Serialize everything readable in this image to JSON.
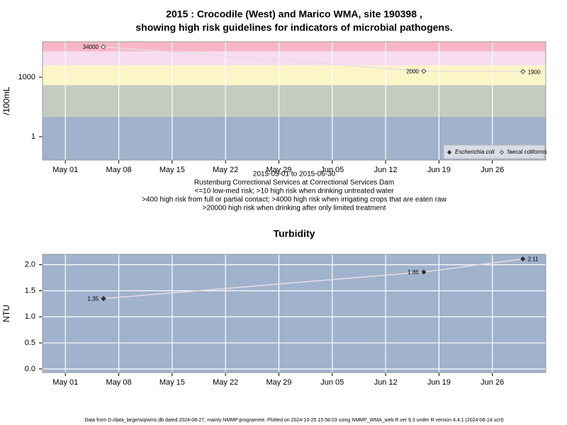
{
  "chart_data": [
    {
      "type": "line",
      "title": [
        "2015 : Crocodile (West) and Marico WMA, site 190398 ,",
        "showing high risk guidelines for indicators of microbial pathogens."
      ],
      "subtitle": [
        "2015-05-01 to 2015-06-30",
        "Rustenburg Correctional Services at Correctional Services Dam",
        "<=10 low-med risk; >10 high risk when drinking untreated water",
        ">400 high risk from full or partial contact; >4000 high risk when irrigating crops that are eaten raw",
        ">20000 high risk when drinking after only limited treatment"
      ],
      "y_label": "/100mL",
      "x": [
        "2015-05-06",
        "2015-06-17",
        "2015-06-30"
      ],
      "series": [
        {
          "name": "Escherichia coli",
          "color": "#222222",
          "marker": "filled",
          "values": [
            null,
            null,
            null
          ]
        },
        {
          "name": "faecal coliforms",
          "color": "#e6dce4",
          "marker": "open",
          "values": [
            34000,
            2000,
            1900
          ]
        }
      ],
      "xlim": [
        "2015-04-28",
        "2015-07-03"
      ],
      "xticks": [
        {
          "value": "2015-05-01",
          "label": "May 01"
        },
        {
          "value": "2015-05-08",
          "label": "May 08"
        },
        {
          "value": "2015-05-15",
          "label": "May 15"
        },
        {
          "value": "2015-05-22",
          "label": "May 22"
        },
        {
          "value": "2015-05-29",
          "label": "May 29"
        },
        {
          "value": "2015-06-05",
          "label": "Jun 05"
        },
        {
          "value": "2015-06-12",
          "label": "Jun 12"
        },
        {
          "value": "2015-06-19",
          "label": "Jun 19"
        },
        {
          "value": "2015-06-26",
          "label": "Jun 26"
        }
      ],
      "ylim": [
        0.066,
        61000
      ],
      "yticks": [
        1,
        1000
      ],
      "log_y": true,
      "grid": "x",
      "bands": [
        {
          "upper": 10,
          "color": "#a0b2cc"
        },
        {
          "upper": 400,
          "color": "#c4ccc0"
        },
        {
          "upper": 4000,
          "color": "#fbf5c8"
        },
        {
          "upper": 20000,
          "color": "#f8dcf0"
        },
        {
          "upper": null,
          "color": "#f9b6c6"
        }
      ],
      "legend": "bottom-right"
    },
    {
      "type": "line",
      "title": "Turbidity",
      "y_label": "NTU",
      "x": [
        "2015-05-06",
        "2015-06-17",
        "2015-06-30"
      ],
      "series": [
        {
          "name": "Turbidity",
          "color": "#e6dce4",
          "marker": "filled",
          "values": [
            1.35,
            1.86,
            2.11
          ]
        }
      ],
      "xlim": [
        "2015-04-28",
        "2015-07-03"
      ],
      "xticks": [
        {
          "value": "2015-05-01",
          "label": "May 01"
        },
        {
          "value": "2015-05-08",
          "label": "May 08"
        },
        {
          "value": "2015-05-15",
          "label": "May 15"
        },
        {
          "value": "2015-05-22",
          "label": "May 22"
        },
        {
          "value": "2015-05-29",
          "label": "May 29"
        },
        {
          "value": "2015-06-05",
          "label": "Jun 05"
        },
        {
          "value": "2015-06-12",
          "label": "Jun 12"
        },
        {
          "value": "2015-06-19",
          "label": "Jun 19"
        },
        {
          "value": "2015-06-26",
          "label": "Jun 26"
        }
      ],
      "ylim": [
        -0.07,
        2.2
      ],
      "yticks": [
        {
          "value": 0,
          "label": "0.0"
        },
        0.5,
        {
          "value": 1,
          "label": "1.0"
        },
        1.5,
        {
          "value": 2,
          "label": "2.0"
        }
      ],
      "log_y": false,
      "grid": "both",
      "background": "#a0b2cc"
    }
  ],
  "footer": "Data from D:/data_large/wq/wms.db dated 2024-08-27, mainly NMMP programme. Plotted on 2024-10-25 15:58:03 using NMMP_WMA_web.R ver 9.3 under R version 4.4.1 (2024-06-14 ucrt)"
}
